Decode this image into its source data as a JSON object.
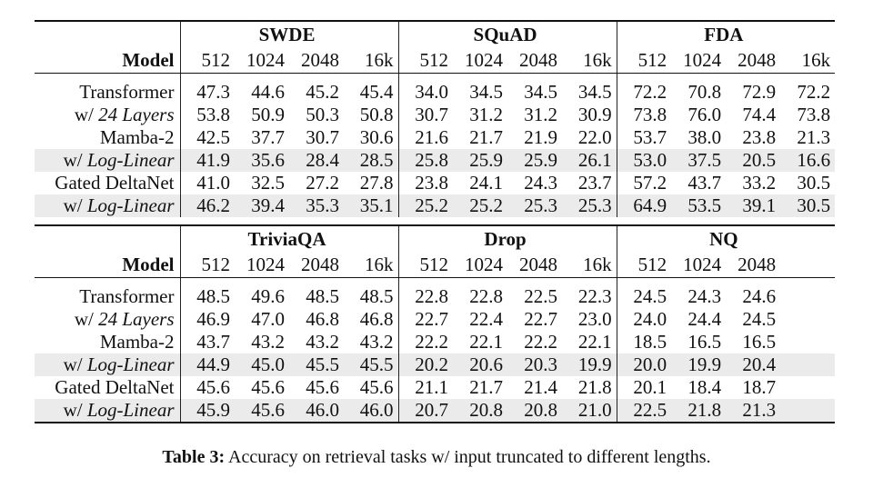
{
  "table1": {
    "groups": [
      "SWDE",
      "SQuAD",
      "FDA"
    ],
    "model_header": "Model",
    "lengths": [
      "512",
      "1024",
      "2048",
      "16k"
    ],
    "rows": [
      {
        "prefix": "Transformer",
        "suffix": "",
        "shaded": false,
        "values": [
          "47.3",
          "44.6",
          "45.2",
          "45.4",
          "34.0",
          "34.5",
          "34.5",
          "34.5",
          "72.2",
          "70.8",
          "72.9",
          "72.2"
        ]
      },
      {
        "prefix": "w/ ",
        "suffix": "24 Layers",
        "shaded": false,
        "values": [
          "53.8",
          "50.9",
          "50.3",
          "50.8",
          "30.7",
          "31.2",
          "31.2",
          "30.9",
          "73.8",
          "76.0",
          "74.4",
          "73.8"
        ]
      },
      {
        "prefix": "Mamba-2",
        "suffix": "",
        "shaded": false,
        "values": [
          "42.5",
          "37.7",
          "30.7",
          "30.6",
          "21.6",
          "21.7",
          "21.9",
          "22.0",
          "53.7",
          "38.0",
          "23.8",
          "21.3"
        ]
      },
      {
        "prefix": "w/ ",
        "suffix": "Log-Linear",
        "shaded": true,
        "values": [
          "41.9",
          "35.6",
          "28.4",
          "28.5",
          "25.8",
          "25.9",
          "25.9",
          "26.1",
          "53.0",
          "37.5",
          "20.5",
          "16.6"
        ]
      },
      {
        "prefix": "Gated DeltaNet",
        "suffix": "",
        "shaded": false,
        "values": [
          "41.0",
          "32.5",
          "27.2",
          "27.8",
          "23.8",
          "24.1",
          "24.3",
          "23.7",
          "57.2",
          "43.7",
          "33.2",
          "30.5"
        ]
      },
      {
        "prefix": "w/ ",
        "suffix": "Log-Linear",
        "shaded": true,
        "values": [
          "46.2",
          "39.4",
          "35.3",
          "35.1",
          "25.2",
          "25.2",
          "25.3",
          "25.3",
          "64.9",
          "53.5",
          "39.1",
          "30.5"
        ]
      }
    ]
  },
  "table2": {
    "groups": [
      "TriviaQA",
      "Drop",
      "NQ"
    ],
    "model_header": "Model",
    "lengths": [
      "512",
      "1024",
      "2048",
      "16k"
    ],
    "nq_lengths": [
      "512",
      "1024",
      "2048",
      ""
    ],
    "rows": [
      {
        "prefix": "Transformer",
        "suffix": "",
        "shaded": false,
        "values": [
          "48.5",
          "49.6",
          "48.5",
          "48.5",
          "22.8",
          "22.8",
          "22.5",
          "22.3",
          "24.5",
          "24.3",
          "24.6",
          ""
        ]
      },
      {
        "prefix": "w/ ",
        "suffix": "24 Layers",
        "shaded": false,
        "values": [
          "46.9",
          "47.0",
          "46.8",
          "46.8",
          "22.7",
          "22.4",
          "22.7",
          "23.0",
          "24.0",
          "24.4",
          "24.5",
          ""
        ]
      },
      {
        "prefix": "Mamba-2",
        "suffix": "",
        "shaded": false,
        "values": [
          "43.7",
          "43.2",
          "43.2",
          "43.2",
          "22.2",
          "22.1",
          "22.2",
          "22.1",
          "18.5",
          "16.5",
          "16.5",
          ""
        ]
      },
      {
        "prefix": "w/ ",
        "suffix": "Log-Linear",
        "shaded": true,
        "values": [
          "44.9",
          "45.0",
          "45.5",
          "45.5",
          "20.2",
          "20.6",
          "20.3",
          "19.9",
          "20.0",
          "19.9",
          "20.4",
          ""
        ]
      },
      {
        "prefix": "Gated DeltaNet",
        "suffix": "",
        "shaded": false,
        "values": [
          "45.6",
          "45.6",
          "45.6",
          "45.6",
          "21.1",
          "21.7",
          "21.4",
          "21.8",
          "20.1",
          "18.4",
          "18.7",
          ""
        ]
      },
      {
        "prefix": "w/ ",
        "suffix": "Log-Linear",
        "shaded": true,
        "values": [
          "45.9",
          "45.6",
          "46.0",
          "46.0",
          "20.7",
          "20.8",
          "20.8",
          "21.0",
          "22.5",
          "21.8",
          "21.3",
          ""
        ]
      }
    ]
  },
  "caption": {
    "label": "Table 3:",
    "text": " Accuracy on retrieval tasks w/ input truncated to different lengths."
  }
}
